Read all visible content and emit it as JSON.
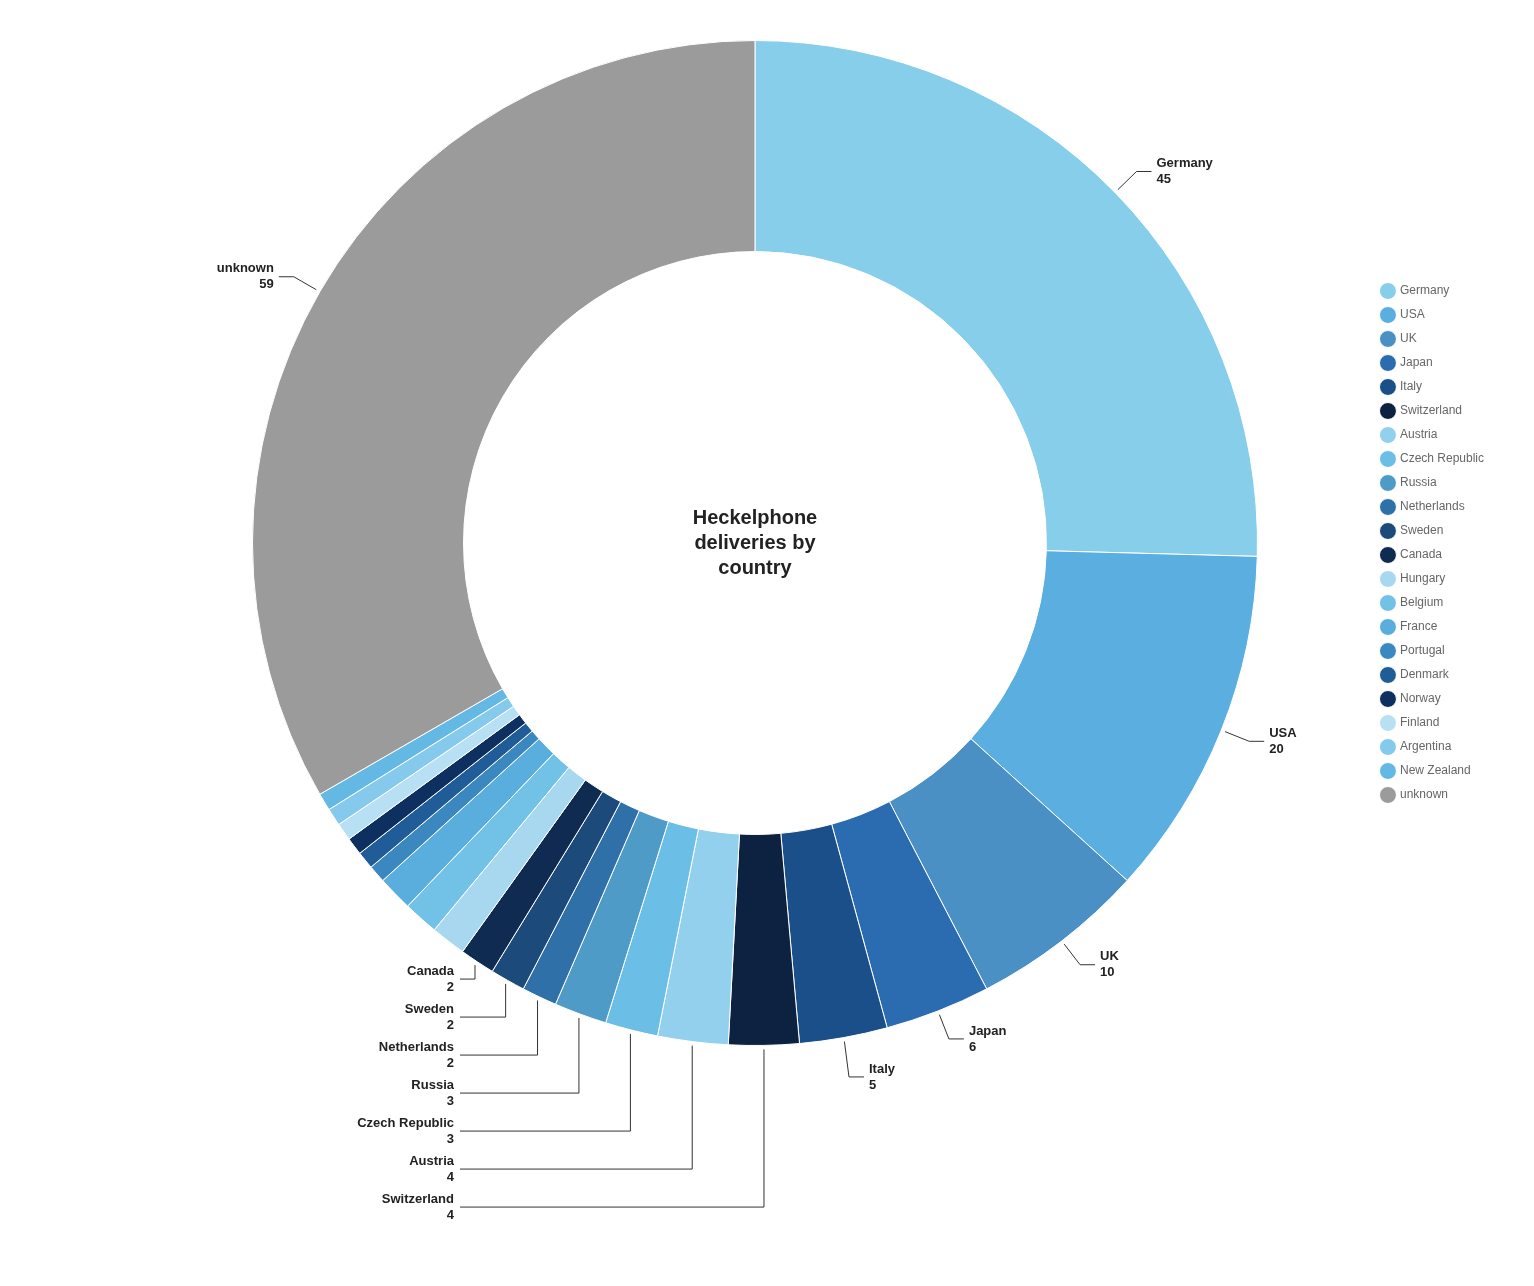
{
  "chart_data": {
    "type": "doughnut",
    "title": "Heckelphone\ndeliveries by\ncountry",
    "categories": [
      "Germany",
      "USA",
      "UK",
      "Japan",
      "Italy",
      "Switzerland",
      "Austria",
      "Czech Republic",
      "Russia",
      "Netherlands",
      "Sweden",
      "Canada",
      "Hungary",
      "Belgium",
      "France",
      "Portugal",
      "Denmark",
      "Norway",
      "Finland",
      "Argentina",
      "New Zealand",
      "unknown"
    ],
    "values": [
      45,
      20,
      10,
      6,
      5,
      4,
      4,
      3,
      3,
      2,
      2,
      2,
      2,
      2,
      2,
      1,
      1,
      1,
      1,
      1,
      1,
      59
    ],
    "value_labels": [
      "45",
      "20",
      "10",
      "6",
      "5",
      "4",
      "4",
      "3",
      "3",
      "2",
      "2",
      "2",
      null,
      null,
      null,
      null,
      null,
      null,
      null,
      null,
      null,
      "59"
    ],
    "colors": [
      "#87CEEB",
      "#5BAEE0",
      "#4A90C4",
      "#2B6CB0",
      "#1A4F8A",
      "#0D2240",
      "#93D0EE",
      "#6BBFE6",
      "#4E9BC7",
      "#3070A8",
      "#1C4A7A",
      "#0F2B52",
      "#A8D8F0",
      "#72C2E8",
      "#5AAEDD",
      "#3A88BF",
      "#1F5C98",
      "#0E3060",
      "#B8E0F5",
      "#85CAEC",
      "#64B8E4",
      "#9B9B9B"
    ],
    "legend": "right"
  }
}
